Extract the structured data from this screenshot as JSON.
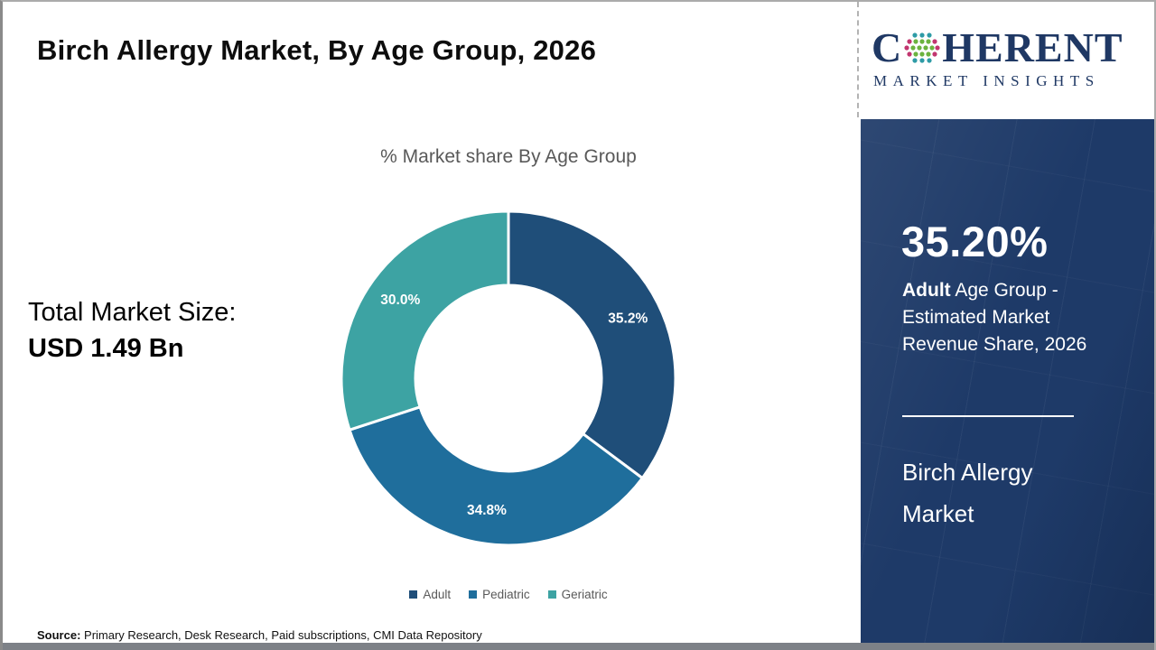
{
  "page": {
    "title": "Birch Allergy Market, By Age Group, 2026",
    "source_label": "Source:",
    "source_text": " Primary Research, Desk Research, Paid subscriptions, CMI Data Repository"
  },
  "logo": {
    "name_start": "C",
    "name_end": "HERENT",
    "subtitle": "MARKET INSIGHTS",
    "navy": "#1F3864",
    "dot_green": "#6CB33F",
    "dot_pink": "#C2356F",
    "dot_teal": "#2E9BA6"
  },
  "left_panel": {
    "total_label": "Total Market Size:",
    "total_value": "USD 1.49 Bn"
  },
  "sidebar": {
    "highlight_value": "35.20%",
    "desc_bold": "Adult",
    "desc_rest_line1": " Age Group -",
    "desc_line2": "Estimated Market",
    "desc_line3": "Revenue Share, 2026",
    "footer_line1": "Birch Allergy",
    "footer_line2": "Market",
    "background": "#1E3A68"
  },
  "chart_data": {
    "type": "pie",
    "donut": true,
    "title": "% Market share By Age Group",
    "categories": [
      "Adult",
      "Pediatric",
      "Geriatric"
    ],
    "values": [
      35.2,
      34.8,
      30.0
    ],
    "labels": [
      "35.2%",
      "34.8%",
      "30.0%"
    ],
    "colors": [
      "#1F4E79",
      "#1F6E9C",
      "#3DA3A3"
    ],
    "start_angle_deg": 0,
    "direction": "clockwise",
    "outer_radius": 185,
    "inner_radius": 103,
    "slice_border_color": "#FFFFFF",
    "legend_position": "bottom"
  }
}
